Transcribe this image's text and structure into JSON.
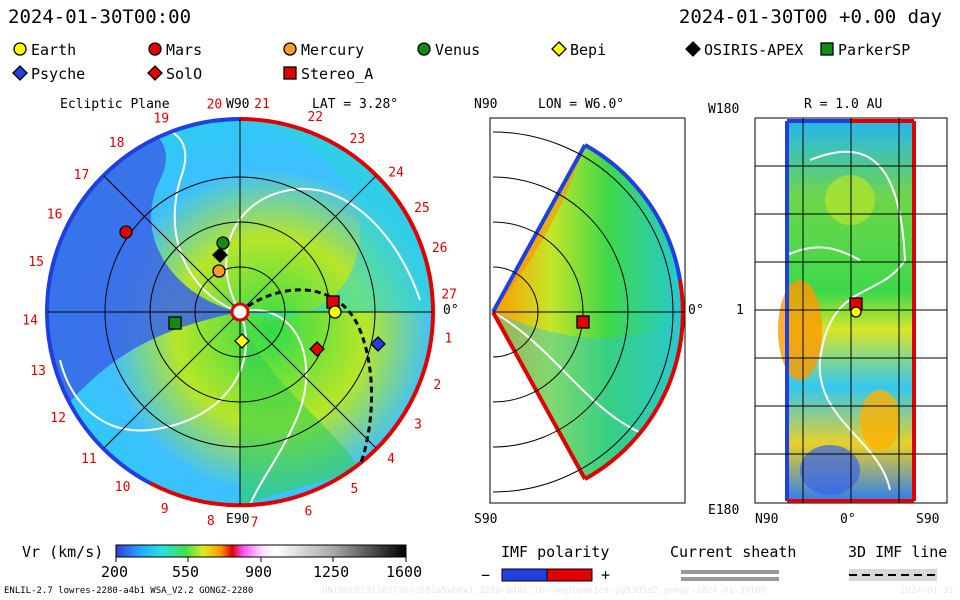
{
  "header": {
    "left_time": "2024-01-30T00:00",
    "right_time": "2024-01-30T00 +0.00 day"
  },
  "legend": [
    {
      "label": "Earth",
      "shape": "circle",
      "color": "#ffff00"
    },
    {
      "label": "Mars",
      "shape": "circle",
      "color": "#e00000"
    },
    {
      "label": "Mercury",
      "shape": "circle",
      "color": "#ff9a2e"
    },
    {
      "label": "Venus",
      "shape": "circle",
      "color": "#138a13"
    },
    {
      "label": "Bepi",
      "shape": "diamond",
      "color": "#ffff00"
    },
    {
      "label": "OSIRIS-APEX",
      "shape": "diamond",
      "color": "#000000"
    },
    {
      "label": "ParkerSP",
      "shape": "square",
      "color": "#138a13"
    },
    {
      "label": "Psyche",
      "shape": "diamond",
      "color": "#1f3fe0"
    },
    {
      "label": "SolO",
      "shape": "diamond",
      "color": "#e00000"
    },
    {
      "label": "Stereo_A",
      "shape": "square",
      "color": "#e00000"
    }
  ],
  "ecliptic": {
    "title": "Ecliptic Plane",
    "lat_label": "LAT = 3.28°",
    "top_label": "W90",
    "bottom_label": "E90",
    "right_label": "0°",
    "carrington_ticks": [
      "19",
      "20",
      "21",
      "22",
      "23",
      "24",
      "25",
      "26",
      "27",
      "1",
      "2",
      "3",
      "4",
      "5",
      "6",
      "7",
      "8",
      "9",
      "10",
      "11",
      "12",
      "13",
      "14",
      "15",
      "16",
      "17",
      "18"
    ]
  },
  "meridional": {
    "title": "LON = W6.0°",
    "top_label": "N90",
    "bottom_label": "S90",
    "right_label": "0°"
  },
  "latlon": {
    "title": "R = 1.0 AU",
    "top_label": "W180",
    "bottom_label": "E180",
    "mid_label": "1",
    "x_labels": [
      "N90",
      "0°",
      "S90"
    ]
  },
  "colorbar": {
    "label": "Vr (km/s)",
    "ticks": [
      "200",
      "550",
      "900",
      "1250",
      "1600"
    ]
  },
  "imf": {
    "label": "IMF polarity",
    "minus": "−",
    "plus": "+"
  },
  "current_sheath": {
    "label": "Current sheath"
  },
  "imf_line": {
    "label": "3D IMF line"
  },
  "footer": {
    "left": "ENLIL-2.7 lowres-2280-a4b1 WSA_V2.2 GONGZ-2280",
    "right": "UNIQUE0131163736/2081a5x60x1.2280-a4b1.16--noptumn1cd-1g53d5d2.gongz-2024-01-30T00",
    "date": "2024-01-31"
  },
  "chart_data": [
    {
      "type": "heatmap",
      "title": "Ecliptic Plane",
      "quantity": "Vr (km/s)",
      "range": [
        200,
        1600
      ],
      "objects": [
        "Earth",
        "Mars",
        "Mercury",
        "Venus",
        "Bepi",
        "OSIRIS-APEX",
        "ParkerSP",
        "Psyche",
        "SolO",
        "Stereo_A"
      ]
    },
    {
      "type": "heatmap",
      "title": "LON = W6.0°",
      "quantity": "Vr (km/s)",
      "objects": [
        "Stereo_A"
      ]
    },
    {
      "type": "heatmap",
      "title": "R = 1.0 AU",
      "quantity": "Vr (km/s)",
      "objects": [
        "Earth",
        "Stereo_A"
      ]
    }
  ]
}
